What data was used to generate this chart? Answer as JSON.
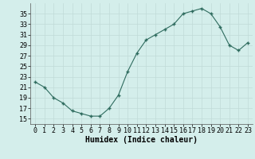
{
  "x": [
    0,
    1,
    2,
    3,
    4,
    5,
    6,
    7,
    8,
    9,
    10,
    11,
    12,
    13,
    14,
    15,
    16,
    17,
    18,
    19,
    20,
    21,
    22,
    23
  ],
  "y": [
    22,
    21,
    19,
    18,
    16.5,
    16,
    15.5,
    15.5,
    17,
    19.5,
    24,
    27.5,
    30,
    31,
    32,
    33,
    35,
    35.5,
    36,
    35,
    32.5,
    29,
    28,
    29.5
  ],
  "xlabel": "Humidex (Indice chaleur)",
  "xlim": [
    -0.5,
    23.5
  ],
  "ylim": [
    14,
    37
  ],
  "yticks": [
    15,
    17,
    19,
    21,
    23,
    25,
    27,
    29,
    31,
    33,
    35
  ],
  "xticks": [
    0,
    1,
    2,
    3,
    4,
    5,
    6,
    7,
    8,
    9,
    10,
    11,
    12,
    13,
    14,
    15,
    16,
    17,
    18,
    19,
    20,
    21,
    22,
    23
  ],
  "line_color": "#2e6b5e",
  "marker_color": "#2e6b5e",
  "bg_color": "#d4eeeb",
  "grid_color": "#c0dbd8",
  "xlabel_fontsize": 7,
  "tick_fontsize": 6
}
